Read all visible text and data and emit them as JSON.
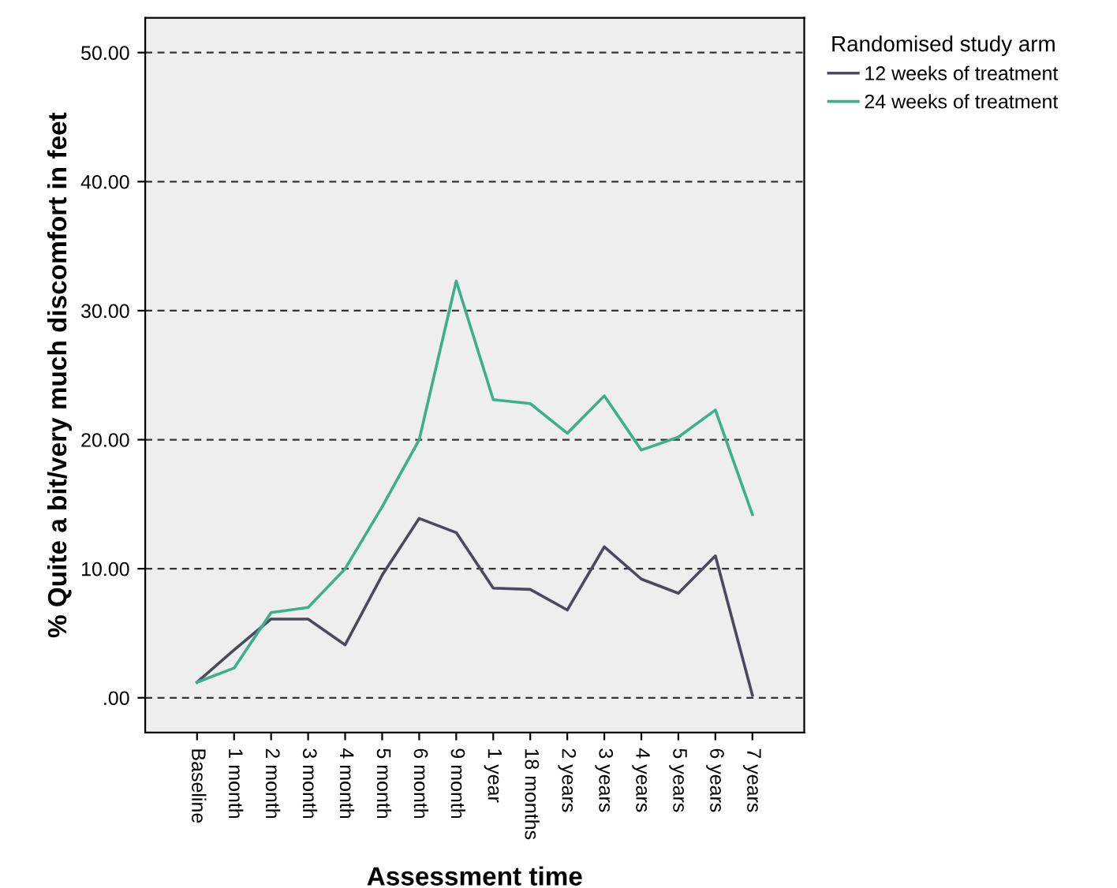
{
  "chart_data": {
    "type": "line",
    "xlabel": "Assessment time",
    "ylabel": "% Quite a bit/very much discomfort in feet",
    "legend_title": "Randomised study arm",
    "categories": [
      "Baseline",
      "1 month",
      "2 month",
      "3 month",
      "4 month",
      "5 month",
      "6 month",
      "9 month",
      "1 year",
      "18 months",
      "2 years",
      "3 years",
      "4 years",
      "5 years",
      "6 years",
      "7 years"
    ],
    "series": [
      {
        "name": "12 weeks of treatment",
        "color": "#4a4a5c",
        "values": [
          1.2,
          3.7,
          6.1,
          6.1,
          4.1,
          9.5,
          13.9,
          12.8,
          8.5,
          8.4,
          6.8,
          11.7,
          9.2,
          8.1,
          11.0,
          0.2
        ]
      },
      {
        "name": "24 weeks of treatment",
        "color": "#3cb08c",
        "values": [
          1.2,
          2.3,
          6.6,
          7.0,
          10.0,
          14.8,
          20.0,
          32.3,
          23.1,
          22.8,
          20.5,
          23.4,
          19.2,
          20.2,
          22.3,
          14.2
        ]
      }
    ],
    "ylim": [
      -2.7,
      52.7
    ],
    "yticks": [
      {
        "value": 0,
        "label": ".00"
      },
      {
        "value": 10,
        "label": "10.00"
      },
      {
        "value": 20,
        "label": "20.00"
      },
      {
        "value": 30,
        "label": "30.00"
      },
      {
        "value": 40,
        "label": "40.00"
      },
      {
        "value": 50,
        "label": "50.00"
      }
    ],
    "grid": "y",
    "legend": "top right",
    "marker": "none",
    "line_style": "solid"
  }
}
